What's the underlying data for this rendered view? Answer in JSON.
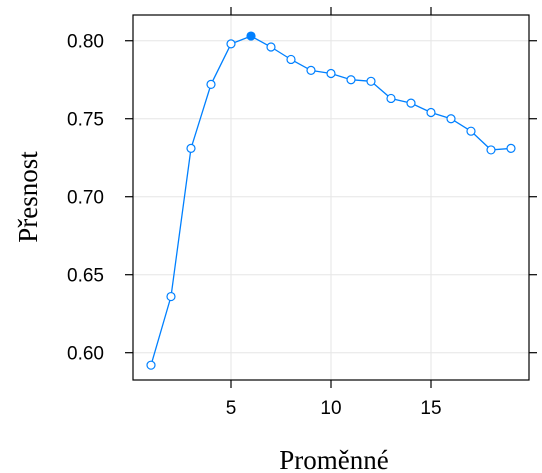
{
  "chart_data": {
    "type": "line",
    "title": "",
    "xlabel": "Proměnné",
    "ylabel": "Přesnost",
    "xlim": [
      0.1,
      19.9
    ],
    "ylim": [
      0.5825,
      0.8165
    ],
    "x_ticks": [
      5,
      10,
      15
    ],
    "x_tick_labels": [
      "5",
      "10",
      "15"
    ],
    "y_ticks": [
      0.6,
      0.65,
      0.7,
      0.75,
      0.8
    ],
    "y_tick_labels": [
      "0.60",
      "0.65",
      "0.70",
      "0.75",
      "0.80"
    ],
    "grid": true,
    "legend": "none",
    "colors": {
      "series": "#0080ff",
      "grid": "#e6e6e6",
      "frame": "#000000"
    },
    "series": [
      {
        "x": [
          1,
          2,
          3,
          4,
          5,
          6,
          7,
          8,
          9,
          10,
          11,
          12,
          13,
          14,
          15,
          16,
          17,
          18,
          19
        ],
        "values": [
          0.592,
          0.636,
          0.731,
          0.772,
          0.798,
          0.803,
          0.796,
          0.788,
          0.781,
          0.779,
          0.775,
          0.774,
          0.763,
          0.76,
          0.754,
          0.75,
          0.742,
          0.73,
          0.731
        ],
        "highlight_x": 6
      }
    ]
  }
}
